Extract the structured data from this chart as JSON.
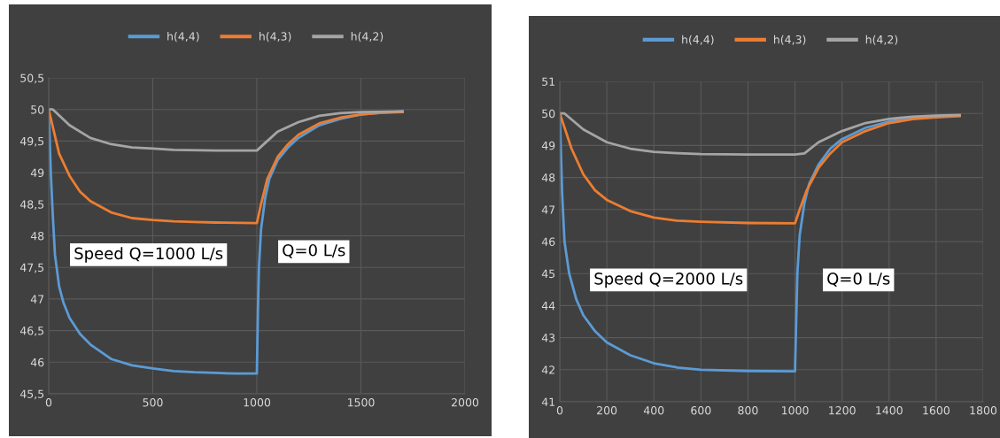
{
  "chart_data": [
    {
      "type": "line",
      "legend": "top",
      "grid": true,
      "line_style": "solid",
      "xlim": [
        0,
        2000
      ],
      "xticks": [
        0,
        500,
        1000,
        1500,
        2000
      ],
      "ylim": [
        45.5,
        50.5
      ],
      "yticks": [
        {
          "value": 45.5,
          "label": "45,5"
        },
        46,
        {
          "value": 46.5,
          "label": "46,5"
        },
        47,
        {
          "value": 47.5,
          "label": "47,5"
        },
        48,
        {
          "value": 48.5,
          "label": "48,5"
        },
        49,
        {
          "value": 49.5,
          "label": "49,5"
        },
        50,
        {
          "value": 50.5,
          "label": "50,5"
        }
      ],
      "annotations": [
        "Speed Q=1000 L/s",
        "Q=0 L/s"
      ],
      "series": [
        {
          "name": "h(4,4)",
          "color": "#5b9bd5",
          "x": [
            0,
            10,
            20,
            30,
            50,
            70,
            100,
            150,
            200,
            300,
            400,
            500,
            600,
            700,
            800,
            900,
            1000,
            1005,
            1010,
            1020,
            1040,
            1060,
            1100,
            1150,
            1200,
            1300,
            1400,
            1500,
            1600,
            1700
          ],
          "values": [
            50,
            49.0,
            48.3,
            47.7,
            47.2,
            46.95,
            46.7,
            46.45,
            46.28,
            46.05,
            45.95,
            45.9,
            45.86,
            45.84,
            45.83,
            45.82,
            45.82,
            46.8,
            47.5,
            48.1,
            48.6,
            48.9,
            49.2,
            49.4,
            49.55,
            49.75,
            49.85,
            49.92,
            49.95,
            49.97
          ]
        },
        {
          "name": "h(4,3)",
          "color": "#ed7d31",
          "x": [
            0,
            50,
            100,
            150,
            200,
            300,
            400,
            500,
            600,
            700,
            800,
            1000,
            1020,
            1050,
            1100,
            1150,
            1200,
            1300,
            1400,
            1500,
            1600,
            1700
          ],
          "values": [
            50,
            49.3,
            48.95,
            48.7,
            48.55,
            48.37,
            48.28,
            48.25,
            48.23,
            48.22,
            48.21,
            48.2,
            48.5,
            48.9,
            49.25,
            49.45,
            49.6,
            49.78,
            49.87,
            49.92,
            49.95,
            49.96
          ]
        },
        {
          "name": "h(4,2)",
          "color": "#a5a5a5",
          "x": [
            0,
            20,
            100,
            200,
            300,
            400,
            500,
            600,
            800,
            1000,
            1050,
            1100,
            1200,
            1300,
            1400,
            1500,
            1700
          ],
          "values": [
            50,
            50.0,
            49.75,
            49.55,
            49.45,
            49.4,
            49.38,
            49.36,
            49.35,
            49.35,
            49.5,
            49.65,
            49.8,
            49.9,
            49.94,
            49.96,
            49.97
          ]
        }
      ]
    },
    {
      "type": "line",
      "legend": "top",
      "grid": true,
      "line_style": "solid",
      "xlim": [
        0,
        1800
      ],
      "xticks": [
        0,
        200,
        400,
        600,
        800,
        1000,
        1200,
        1400,
        1600,
        1800
      ],
      "ylim": [
        41,
        51
      ],
      "yticks": [
        41,
        42,
        43,
        44,
        45,
        46,
        47,
        48,
        49,
        50,
        51
      ],
      "annotations": [
        "Speed Q=2000 L/s",
        "Q=0 L/s"
      ],
      "series": [
        {
          "name": "h(4,4)",
          "color": "#5b9bd5",
          "x": [
            0,
            10,
            20,
            40,
            70,
            100,
            150,
            200,
            300,
            400,
            500,
            600,
            800,
            1000,
            1005,
            1010,
            1020,
            1040,
            1060,
            1100,
            1150,
            1200,
            1300,
            1400,
            1500,
            1600,
            1700
          ],
          "values": [
            50,
            47.5,
            46,
            45,
            44.2,
            43.7,
            43.2,
            42.85,
            42.45,
            42.2,
            42.07,
            42.0,
            41.96,
            41.95,
            43.5,
            45,
            46.2,
            47.2,
            47.8,
            48.4,
            48.9,
            49.2,
            49.55,
            49.75,
            49.85,
            49.9,
            49.93
          ]
        },
        {
          "name": "h(4,3)",
          "color": "#ed7d31",
          "x": [
            0,
            50,
            100,
            150,
            200,
            300,
            400,
            500,
            600,
            800,
            1000,
            1020,
            1050,
            1100,
            1150,
            1200,
            1300,
            1400,
            1500,
            1600,
            1700
          ],
          "values": [
            50,
            48.9,
            48.1,
            47.6,
            47.3,
            46.95,
            46.75,
            46.65,
            46.62,
            46.58,
            46.57,
            47.0,
            47.6,
            48.3,
            48.75,
            49.1,
            49.45,
            49.7,
            49.82,
            49.88,
            49.92
          ]
        },
        {
          "name": "h(4,2)",
          "color": "#a5a5a5",
          "x": [
            0,
            20,
            100,
            200,
            300,
            400,
            500,
            600,
            800,
            1000,
            1040,
            1100,
            1200,
            1300,
            1400,
            1500,
            1600,
            1700
          ],
          "values": [
            50,
            50.0,
            49.5,
            49.1,
            48.9,
            48.8,
            48.76,
            48.73,
            48.72,
            48.72,
            48.75,
            49.1,
            49.45,
            49.7,
            49.83,
            49.9,
            49.93,
            49.95
          ]
        }
      ]
    }
  ]
}
